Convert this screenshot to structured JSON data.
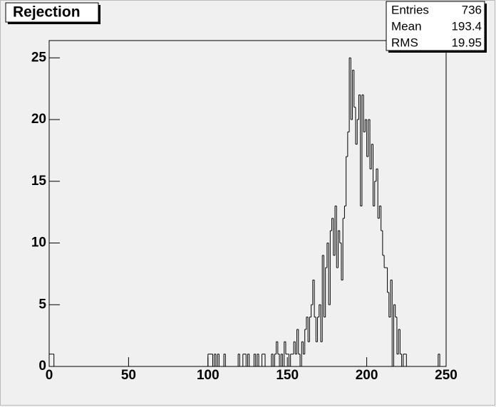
{
  "chart_data": {
    "type": "histogram",
    "title": "Rejection",
    "stats": {
      "labels": [
        "Entries",
        "Mean",
        "RMS"
      ],
      "values": [
        736,
        193.4,
        19.95
      ]
    },
    "bins": [
      0,
      1,
      2,
      3,
      4,
      5,
      6,
      7,
      8,
      9,
      10,
      11,
      12,
      13,
      14,
      15,
      16,
      17,
      18,
      19,
      20,
      21,
      22,
      23,
      24,
      25,
      26,
      27,
      28,
      29,
      30,
      31,
      32,
      33,
      34,
      35,
      36,
      37,
      38,
      39,
      40,
      41,
      42,
      43,
      44,
      45,
      46,
      47,
      48,
      49,
      50,
      51,
      52,
      53,
      54,
      55,
      56,
      57,
      58,
      59,
      60,
      61,
      62,
      63,
      64,
      65,
      66,
      67,
      68,
      69,
      70,
      71,
      72,
      73,
      74,
      75,
      76,
      77,
      78,
      79,
      80,
      81,
      82,
      83,
      84,
      85,
      86,
      87,
      88,
      89,
      90,
      91,
      92,
      93,
      94,
      95,
      96,
      97,
      98,
      99,
      100,
      101,
      102,
      103,
      104,
      105,
      106,
      107,
      108,
      109,
      110,
      111,
      112,
      113,
      114,
      115,
      116,
      117,
      118,
      119,
      120,
      121,
      122,
      123,
      124,
      125,
      126,
      127,
      128,
      129,
      130,
      131,
      132,
      133,
      134,
      135,
      136,
      137,
      138,
      139,
      140,
      141,
      142,
      143,
      144,
      145,
      146,
      147,
      148,
      149,
      150,
      151,
      152,
      153,
      154,
      155,
      156,
      157,
      158,
      159,
      160,
      161,
      162,
      163,
      164,
      165,
      166,
      167,
      168,
      169,
      170,
      171,
      172,
      173,
      174,
      175,
      176,
      177,
      178,
      179,
      180,
      181,
      182,
      183,
      184,
      185,
      186,
      187,
      188,
      189,
      190,
      191,
      192,
      193,
      194,
      195,
      196,
      197,
      198,
      199,
      200,
      201,
      202,
      203,
      204,
      205,
      206,
      207,
      208,
      209,
      210,
      211,
      212,
      213,
      214,
      215,
      216,
      217,
      218,
      219,
      220,
      221,
      222,
      223,
      224,
      225,
      226,
      227,
      228,
      229,
      230,
      231,
      232,
      233,
      234,
      235,
      236,
      237,
      238,
      239,
      240,
      241,
      242,
      243,
      244,
      245,
      246,
      247,
      248,
      249,
      250
    ],
    "counts": [
      1,
      1,
      1,
      0,
      0,
      0,
      0,
      0,
      0,
      0,
      0,
      0,
      0,
      0,
      0,
      0,
      0,
      0,
      0,
      0,
      0,
      0,
      0,
      0,
      0,
      0,
      0,
      0,
      0,
      0,
      0,
      0,
      0,
      0,
      0,
      0,
      0,
      0,
      0,
      0,
      0,
      0,
      0,
      0,
      0,
      0,
      0,
      0,
      0,
      0,
      0,
      0,
      0,
      0,
      0,
      0,
      0,
      0,
      0,
      0,
      0,
      0,
      0,
      0,
      0,
      0,
      0,
      0,
      0,
      0,
      0,
      0,
      0,
      0,
      0,
      0,
      0,
      0,
      0,
      0,
      0,
      0,
      0,
      0,
      0,
      0,
      0,
      0,
      0,
      0,
      0,
      0,
      0,
      0,
      0,
      0,
      0,
      0,
      0,
      0,
      1,
      1,
      1,
      0,
      1,
      0,
      1,
      0,
      0,
      0,
      1,
      0,
      0,
      0,
      0,
      0,
      0,
      0,
      0,
      1,
      0,
      0,
      1,
      1,
      0,
      1,
      0,
      0,
      0,
      1,
      0,
      1,
      0,
      0,
      1,
      1,
      0,
      0,
      0,
      0,
      1,
      0,
      1,
      2,
      1,
      0,
      1,
      0,
      2,
      1,
      1,
      0,
      1,
      1,
      2,
      1,
      3,
      1,
      0,
      2,
      1,
      3,
      4,
      2,
      4,
      5,
      7,
      4,
      2,
      4,
      5,
      2,
      9,
      4,
      8,
      10,
      5,
      11,
      12,
      9,
      13,
      8,
      11,
      10,
      7,
      12,
      13,
      17,
      19,
      25,
      20,
      24,
      21,
      18,
      20,
      22,
      13,
      22,
      19,
      20,
      17,
      20,
      16,
      18,
      13,
      15,
      16,
      12,
      13,
      11,
      9,
      8,
      8,
      6,
      4,
      7,
      0,
      5,
      4,
      1,
      3,
      1,
      0,
      1,
      1,
      0,
      0,
      0,
      0,
      0,
      0,
      0,
      0,
      0,
      0,
      0,
      0,
      0,
      0,
      0,
      0,
      0,
      0,
      0,
      0,
      1,
      0,
      0,
      0,
      0
    ],
    "xlim": [
      0,
      250
    ],
    "ylim": [
      0,
      26.4
    ],
    "xticks": [
      0,
      50,
      100,
      150,
      200,
      250
    ],
    "yticks": [
      0,
      5,
      10,
      15,
      20,
      25
    ]
  }
}
